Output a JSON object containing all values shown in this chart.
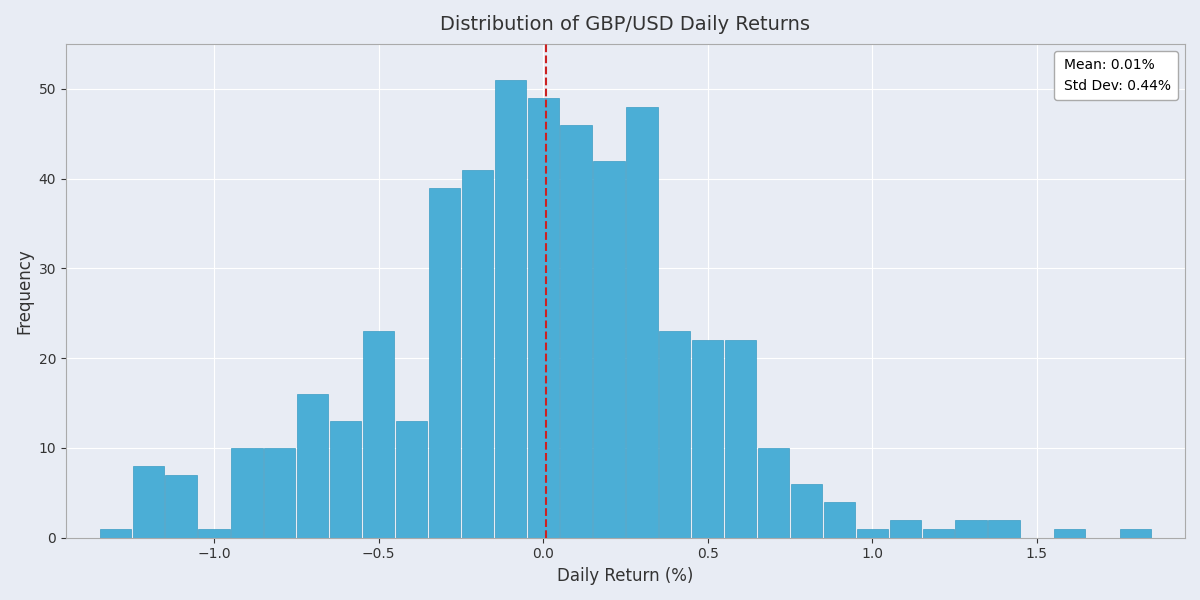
{
  "title": "Distribution of GBP/USD Daily Returns",
  "xlabel": "Daily Return (%)",
  "ylabel": "Frequency",
  "mean": 0.01,
  "std_dev": 0.44,
  "mean_label": "Mean: 0.01%",
  "std_label": "Std Dev: 0.44%",
  "bar_color": "#4BAED6",
  "bar_edge_color": "#3a9cc4",
  "background_color": "#e8ecf4",
  "mean_line_color": "#cc2222",
  "bar_centers": [
    -1.3,
    -1.2,
    -1.1,
    -1.0,
    -0.9,
    -0.8,
    -0.7,
    -0.6,
    -0.5,
    -0.4,
    -0.3,
    -0.2,
    -0.1,
    0.0,
    0.1,
    0.2,
    0.3,
    0.4,
    0.5,
    0.6,
    0.7,
    0.8,
    0.9,
    1.0,
    1.1,
    1.2,
    1.3,
    1.4,
    1.5,
    1.6,
    1.7,
    1.8
  ],
  "frequencies": [
    1,
    8,
    7,
    1,
    10,
    10,
    16,
    13,
    23,
    13,
    39,
    41,
    51,
    49,
    46,
    42,
    48,
    23,
    22,
    22,
    10,
    6,
    4,
    1,
    2,
    1,
    2,
    2,
    0,
    1,
    0,
    1
  ],
  "bar_width": 0.095,
  "ylim": [
    0,
    55
  ],
  "xlim": [
    -1.45,
    1.95
  ]
}
